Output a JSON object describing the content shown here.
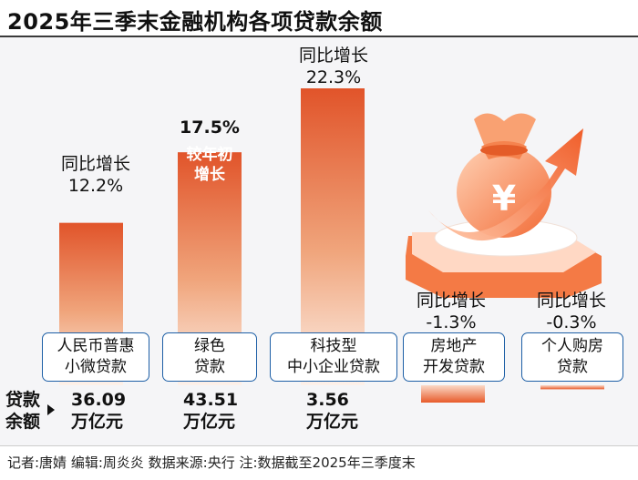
{
  "title": "2025年三季末金融机构各项贷款余额",
  "footer": "记者:唐婧   编辑:周炎炎   数据来源:央行   注:数据截至2025年三季度末",
  "loan_header": "贷款\n余额",
  "chart_data": {
    "type": "bar",
    "title": "2025年三季末金融机构各项贷款余额",
    "categories": [
      "人民币普惠\n小微贷款",
      "绿色\n贷款",
      "科技型\n中小企业贷款",
      "房地产\n开发贷款",
      "个人购房\n贷款"
    ],
    "growth_rate": [
      12.2,
      17.5,
      22.3,
      -1.3,
      -0.3
    ],
    "growth_labels": [
      "同比增长\n12.2%",
      "17.5%",
      "同比增长\n22.3%",
      "同比增长\n-1.3%",
      "同比增长\n-0.3%"
    ],
    "growth_note": "较年初\n增长",
    "loan_balance_labels": [
      "36.09\n万亿元",
      "43.51\n万亿元",
      "3.56\n万亿元",
      "",
      ""
    ],
    "loan_balance_unit": "万亿元",
    "colors": {
      "bar_top": "#e55a2a",
      "bar_bottom": "#ffffff",
      "label_border": "#1d5fa6"
    },
    "ylim": [
      -2,
      25
    ]
  }
}
